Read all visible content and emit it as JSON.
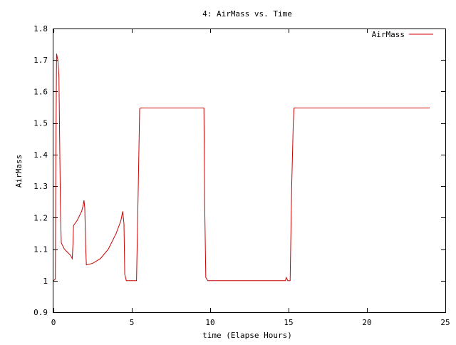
{
  "chart_data": {
    "type": "line",
    "title": "4: AirMass vs. Time",
    "xlabel": "time (Elapse Hours)",
    "ylabel": "AirMass",
    "xlim": [
      0,
      25
    ],
    "ylim": [
      0.9,
      1.8
    ],
    "x_ticks": [
      0,
      5,
      10,
      15,
      20,
      25
    ],
    "y_ticks": [
      0.9,
      1,
      1.1,
      1.2,
      1.3,
      1.4,
      1.5,
      1.6,
      1.7,
      1.8
    ],
    "x_tick_labels": [
      "0",
      "5",
      "10",
      "15",
      "20",
      "25"
    ],
    "y_tick_labels": [
      "0.9",
      "1",
      "1.1",
      "1.2",
      "1.3",
      "1.4",
      "1.5",
      "1.6",
      "1.7",
      "1.8"
    ],
    "grid": false,
    "legend_position": "top-right",
    "series": [
      {
        "name": "AirMass",
        "color": "#cc0000",
        "points": [
          [
            0,
            1.0
          ],
          [
            0.12,
            1.005
          ],
          [
            0.15,
            1.35
          ],
          [
            0.2,
            1.72
          ],
          [
            0.28,
            1.7
          ],
          [
            0.35,
            1.65
          ],
          [
            0.38,
            1.52
          ],
          [
            0.45,
            1.22
          ],
          [
            0.5,
            1.12
          ],
          [
            0.7,
            1.1
          ],
          [
            0.9,
            1.09
          ],
          [
            1.1,
            1.08
          ],
          [
            1.2,
            1.07
          ],
          [
            1.25,
            1.12
          ],
          [
            1.28,
            1.175
          ],
          [
            1.5,
            1.19
          ],
          [
            1.8,
            1.22
          ],
          [
            1.9,
            1.24
          ],
          [
            1.95,
            1.255
          ],
          [
            2.0,
            1.23
          ],
          [
            2.05,
            1.12
          ],
          [
            2.1,
            1.05
          ],
          [
            2.5,
            1.055
          ],
          [
            3.0,
            1.07
          ],
          [
            3.5,
            1.1
          ],
          [
            4.0,
            1.15
          ],
          [
            4.3,
            1.19
          ],
          [
            4.42,
            1.22
          ],
          [
            4.5,
            1.18
          ],
          [
            4.55,
            1.02
          ],
          [
            4.65,
            1.0
          ],
          [
            5.2,
            1.0
          ],
          [
            5.3,
            1.0
          ],
          [
            5.42,
            1.32
          ],
          [
            5.5,
            1.545
          ],
          [
            5.55,
            1.548
          ],
          [
            9.6,
            1.548
          ],
          [
            9.65,
            1.24
          ],
          [
            9.72,
            1.01
          ],
          [
            9.85,
            1.0
          ],
          [
            14.8,
            1.0
          ],
          [
            14.85,
            1.01
          ],
          [
            14.95,
            1.0
          ],
          [
            15.1,
            1.0
          ],
          [
            15.2,
            1.3
          ],
          [
            15.3,
            1.5
          ],
          [
            15.35,
            1.548
          ],
          [
            24.0,
            1.548
          ]
        ]
      }
    ]
  }
}
